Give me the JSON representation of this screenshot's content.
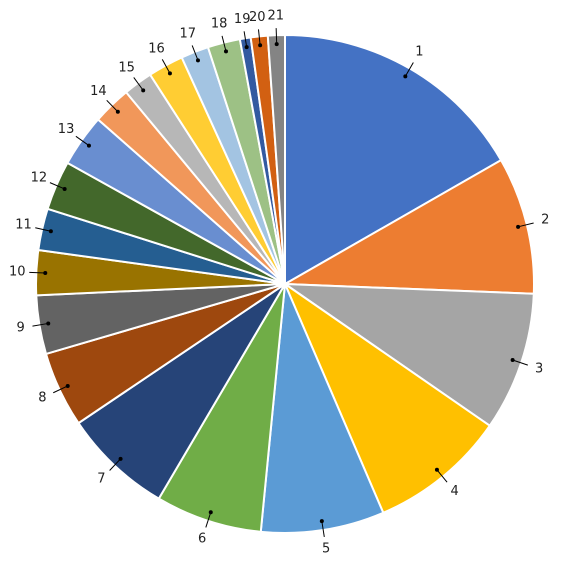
{
  "chart_data": {
    "type": "pie",
    "categories": [
      "1",
      "2",
      "3",
      "4",
      "5",
      "6",
      "7",
      "8",
      "9",
      "10",
      "11",
      "12",
      "13",
      "14",
      "15",
      "16",
      "17",
      "18",
      "19",
      "20",
      "21"
    ],
    "values": [
      16.7,
      8.9,
      9.0,
      8.9,
      8.0,
      6.9,
      7.1,
      4.9,
      3.8,
      2.9,
      2.7,
      3.2,
      3.4,
      2.5,
      1.9,
      2.3,
      1.8,
      2.1,
      0.7,
      1.1,
      1.1
    ],
    "colors": [
      "#4472c4",
      "#ed7d31",
      "#a5a5a5",
      "#ffc000",
      "#5b9bd5",
      "#70ad47",
      "#264478",
      "#9e480e",
      "#636363",
      "#997300",
      "#255e91",
      "#43682b",
      "#698ed0",
      "#f1975a",
      "#b7b7b7",
      "#ffcd33",
      "#a3c4e2",
      "#9dc185",
      "#335aa1",
      "#d26012",
      "#848484"
    ]
  }
}
